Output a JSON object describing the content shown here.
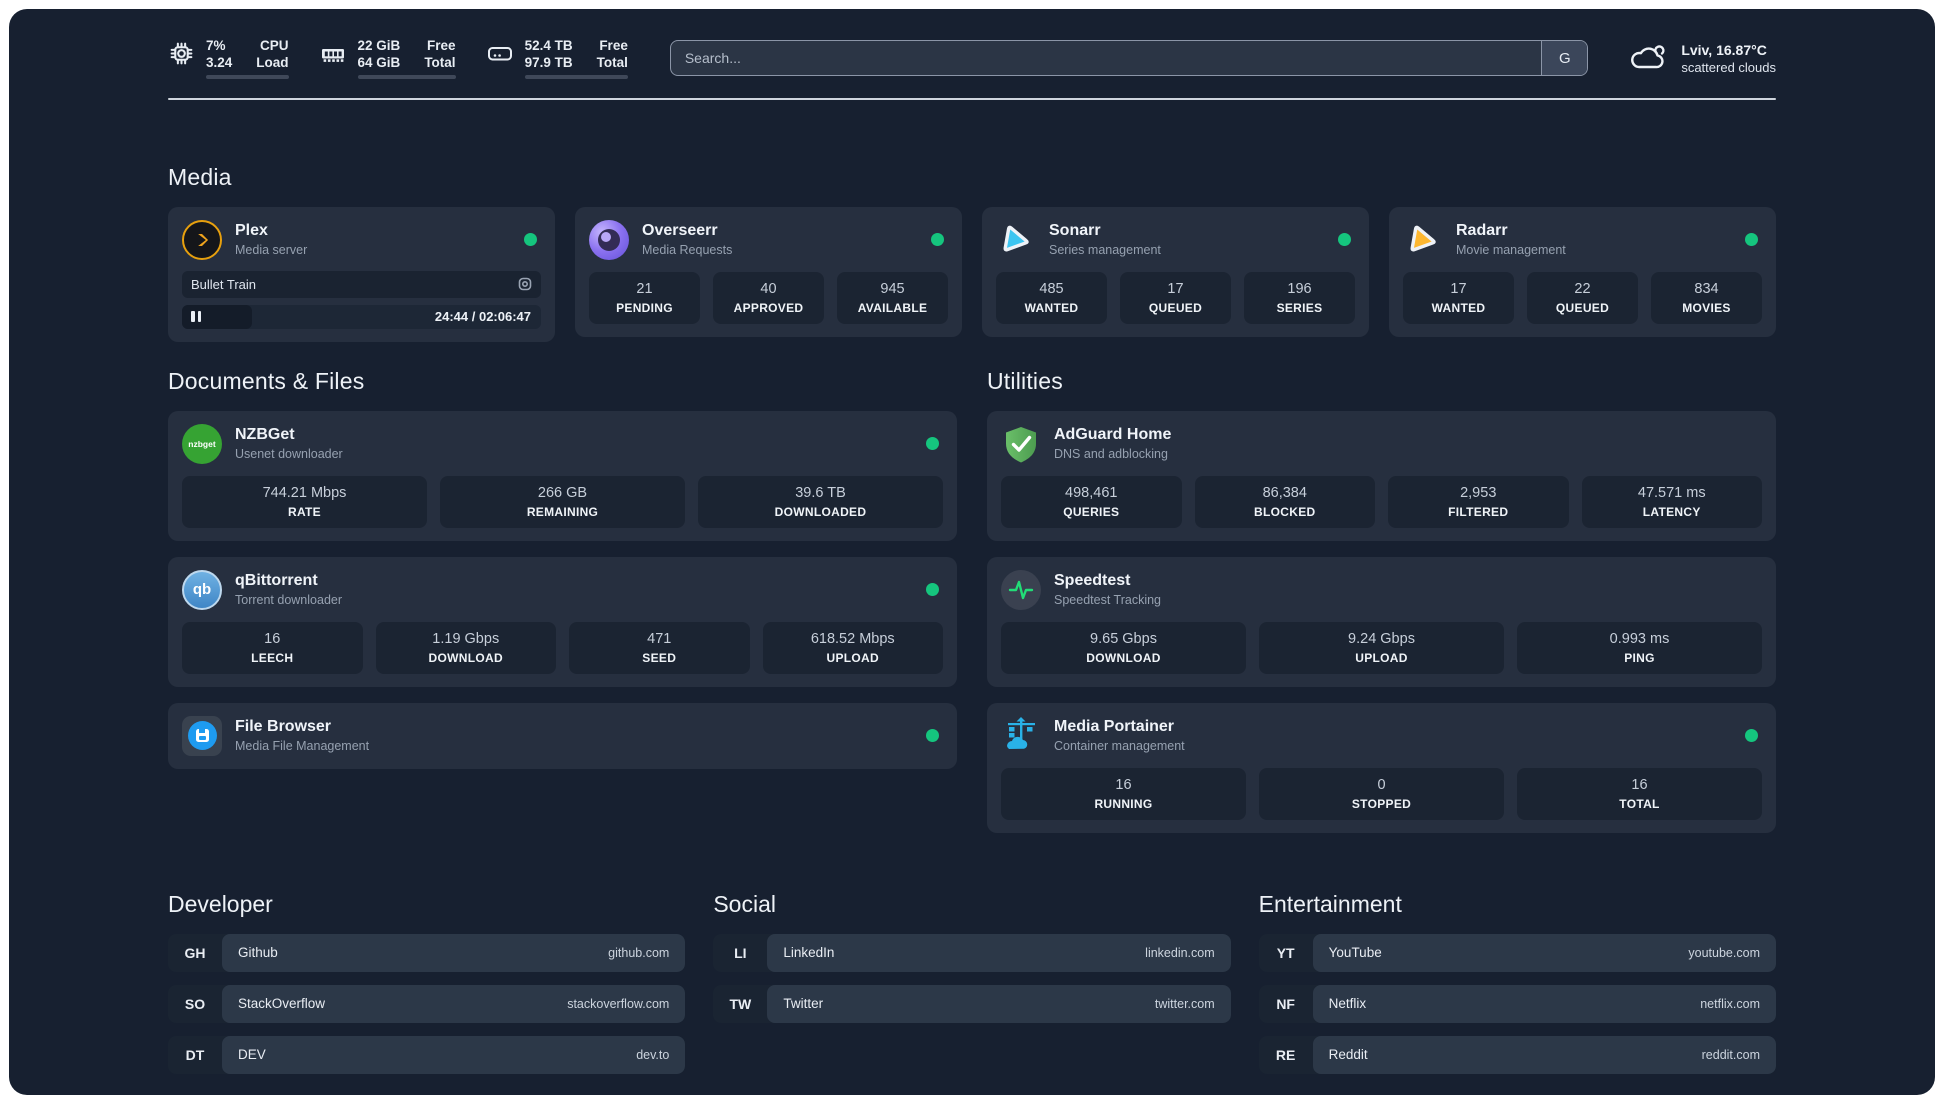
{
  "topbar": {
    "cpu": {
      "value1": "7%",
      "value2": "3.24",
      "label1": "CPU",
      "label2": "Load",
      "progress": 7
    },
    "ram": {
      "value1": "22 GiB",
      "value2": "64 GiB",
      "label1": "Free",
      "label2": "Total",
      "progress": 66
    },
    "disk": {
      "value1": "52.4 TB",
      "value2": "97.9 TB",
      "label1": "Free",
      "label2": "Total",
      "progress": 46
    },
    "search": {
      "placeholder": "Search...",
      "engine_label": "G"
    },
    "weather": {
      "location": "Lviv, 16.87°C",
      "condition": "scattered clouds"
    }
  },
  "media": {
    "title": "Media",
    "cards": [
      {
        "name": "Plex",
        "desc": "Media server",
        "now_playing": {
          "title": "Bullet Train",
          "time": "24:44 / 02:06:47",
          "progress_pct": 19.5
        }
      },
      {
        "name": "Overseerr",
        "desc": "Media Requests",
        "stats": [
          {
            "value": "21",
            "label": "PENDING"
          },
          {
            "value": "40",
            "label": "APPROVED"
          },
          {
            "value": "945",
            "label": "AVAILABLE"
          }
        ]
      },
      {
        "name": "Sonarr",
        "desc": "Series management",
        "stats": [
          {
            "value": "485",
            "label": "WANTED"
          },
          {
            "value": "17",
            "label": "QUEUED"
          },
          {
            "value": "196",
            "label": "SERIES"
          }
        ]
      },
      {
        "name": "Radarr",
        "desc": "Movie management",
        "stats": [
          {
            "value": "17",
            "label": "WANTED"
          },
          {
            "value": "22",
            "label": "QUEUED"
          },
          {
            "value": "834",
            "label": "MOVIES"
          }
        ]
      }
    ]
  },
  "documents": {
    "title": "Documents & Files",
    "cards": [
      {
        "name": "NZBGet",
        "desc": "Usenet downloader",
        "logo_text": "nzbget",
        "stats": [
          {
            "value": "744.21 Mbps",
            "label": "RATE"
          },
          {
            "value": "266 GB",
            "label": "REMAINING"
          },
          {
            "value": "39.6 TB",
            "label": "DOWNLOADED"
          }
        ]
      },
      {
        "name": "qBittorrent",
        "desc": "Torrent downloader",
        "logo_text": "qb",
        "stats": [
          {
            "value": "16",
            "label": "LEECH"
          },
          {
            "value": "1.19 Gbps",
            "label": "DOWNLOAD"
          },
          {
            "value": "471",
            "label": "SEED"
          },
          {
            "value": "618.52 Mbps",
            "label": "UPLOAD"
          }
        ]
      },
      {
        "name": "File Browser",
        "desc": "Media File Management"
      }
    ]
  },
  "utilities": {
    "title": "Utilities",
    "cards": [
      {
        "name": "AdGuard Home",
        "desc": "DNS and adblocking",
        "stats": [
          {
            "value": "498,461",
            "label": "QUERIES"
          },
          {
            "value": "86,384",
            "label": "BLOCKED"
          },
          {
            "value": "2,953",
            "label": "FILTERED"
          },
          {
            "value": "47.571 ms",
            "label": "LATENCY"
          }
        ]
      },
      {
        "name": "Speedtest",
        "desc": "Speedtest Tracking",
        "stats": [
          {
            "value": "9.65 Gbps",
            "label": "DOWNLOAD"
          },
          {
            "value": "9.24 Gbps",
            "label": "UPLOAD"
          },
          {
            "value": "0.993 ms",
            "label": "PING"
          }
        ]
      },
      {
        "name": "Media Portainer",
        "desc": "Container management",
        "stats": [
          {
            "value": "16",
            "label": "RUNNING"
          },
          {
            "value": "0",
            "label": "STOPPED"
          },
          {
            "value": "16",
            "label": "TOTAL"
          }
        ]
      }
    ]
  },
  "bookmarks": {
    "developer": {
      "title": "Developer",
      "links": [
        {
          "abbr": "GH",
          "name": "Github",
          "url": "github.com"
        },
        {
          "abbr": "SO",
          "name": "StackOverflow",
          "url": "stackoverflow.com"
        },
        {
          "abbr": "DT",
          "name": "DEV",
          "url": "dev.to"
        }
      ]
    },
    "social": {
      "title": "Social",
      "links": [
        {
          "abbr": "LI",
          "name": "LinkedIn",
          "url": "linkedin.com"
        },
        {
          "abbr": "TW",
          "name": "Twitter",
          "url": "twitter.com"
        }
      ]
    },
    "entertainment": {
      "title": "Entertainment",
      "links": [
        {
          "abbr": "YT",
          "name": "YouTube",
          "url": "youtube.com"
        },
        {
          "abbr": "NF",
          "name": "Netflix",
          "url": "netflix.com"
        },
        {
          "abbr": "RE",
          "name": "Reddit",
          "url": "reddit.com"
        }
      ]
    }
  },
  "colors": {
    "status_online": "#15c57e",
    "background": "#172030",
    "card": "#262f3f",
    "plex_orange": "#e7a00e",
    "sonarr_cyan": "#3cc5f1",
    "radarr_yellow": "#fdb730",
    "adguard_green": "#5faf5f",
    "portainer_blue": "#29b2e8"
  }
}
